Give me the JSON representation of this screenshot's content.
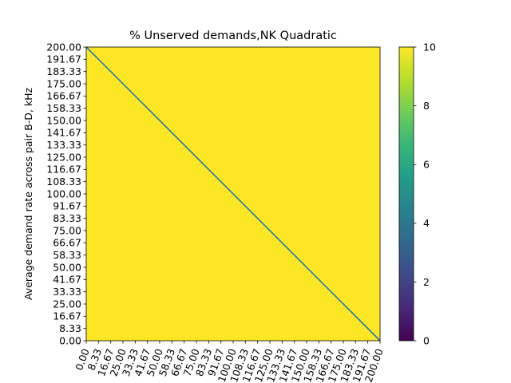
{
  "chart_data": {
    "type": "heatmap",
    "title": "% Unserved demands,NK Quadratic",
    "xlabel": "",
    "ylabel": "Average demand rate across pair B-D, kHz",
    "x_ticks": [
      "0.00",
      "8.33",
      "16.67",
      "25.00",
      "33.33",
      "41.67",
      "50.00",
      "58.33",
      "66.67",
      "75.00",
      "83.33",
      "91.67",
      "100.00",
      "108.33",
      "116.67",
      "125.00",
      "133.33",
      "141.67",
      "150.00",
      "158.33",
      "166.67",
      "175.00",
      "183.33",
      "191.67",
      "200.00"
    ],
    "y_ticks": [
      "0.00",
      "8.33",
      "16.67",
      "25.00",
      "33.33",
      "41.67",
      "50.00",
      "58.33",
      "66.67",
      "75.00",
      "83.33",
      "91.67",
      "100.00",
      "108.33",
      "116.67",
      "125.00",
      "133.33",
      "141.67",
      "150.00",
      "158.33",
      "166.67",
      "175.00",
      "183.33",
      "191.67",
      "200.00"
    ],
    "xlim": [
      0,
      200
    ],
    "ylim": [
      0,
      200
    ],
    "heatmap_value": 10,
    "heatmap_color": "#fde725",
    "overlay_line": {
      "from": [
        0,
        200
      ],
      "to": [
        200,
        0
      ],
      "color": "#1f77b4"
    },
    "colorbar": {
      "min": 0,
      "max": 10,
      "ticks": [
        "0",
        "2",
        "4",
        "6",
        "8",
        "10"
      ],
      "colormap": "viridis"
    }
  }
}
